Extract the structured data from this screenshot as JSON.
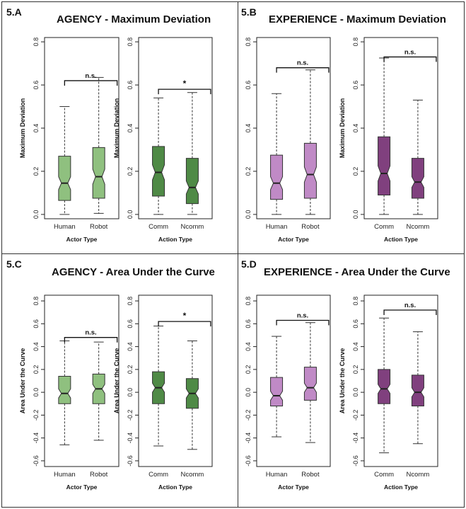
{
  "colors": {
    "agency_human": "#8fc07f",
    "agency_robot": "#8fc07f",
    "agency_action": "#4f8a46",
    "experience_human": "#c08ac6",
    "experience_robot": "#c08ac6",
    "experience_action": "#80407e"
  },
  "chart_data": [
    {
      "panel": "5.A",
      "title": "AGENCY - Maximum Deviation",
      "subplots": [
        {
          "type": "boxplot",
          "xlabel": "Actor Type",
          "ylabel": "Maximum Deviation",
          "ylim": [
            -0.02,
            0.82
          ],
          "yticks": [
            "0.0",
            "0.2",
            "0.4",
            "0.6",
            "0.8"
          ],
          "yticks_values": [
            0,
            0.2,
            0.4,
            0.6,
            0.8
          ],
          "categories": [
            "Human",
            "Robot"
          ],
          "color": "agency_human",
          "boxes": [
            {
              "min": 0.0,
              "q1": 0.065,
              "median": 0.145,
              "q3": 0.27,
              "max": 0.5,
              "notch": [
                0.115,
                0.175
              ]
            },
            {
              "min": 0.005,
              "q1": 0.075,
              "median": 0.175,
              "q3": 0.31,
              "max": 0.635,
              "notch": [
                0.14,
                0.21
              ]
            }
          ],
          "annotation": "n.s.",
          "bracket_y": 0.62
        },
        {
          "type": "boxplot",
          "xlabel": "Action Type",
          "ylabel": "Maximum Deviation",
          "ylim": [
            -0.02,
            0.82
          ],
          "yticks": [
            "0.0",
            "0.2",
            "0.4",
            "0.6",
            "0.8"
          ],
          "yticks_values": [
            0,
            0.2,
            0.4,
            0.6,
            0.8
          ],
          "categories": [
            "Comm",
            "Ncomm"
          ],
          "color": "agency_action",
          "boxes": [
            {
              "min": 0.0,
              "q1": 0.085,
              "median": 0.195,
              "q3": 0.315,
              "max": 0.54,
              "notch": [
                0.16,
                0.23
              ]
            },
            {
              "min": 0.0,
              "q1": 0.05,
              "median": 0.125,
              "q3": 0.26,
              "max": 0.565,
              "notch": [
                0.095,
                0.155
              ]
            }
          ],
          "annotation": "*",
          "bracket_y": 0.58
        }
      ]
    },
    {
      "panel": "5.B",
      "title": "EXPERIENCE - Maximum Deviation",
      "subplots": [
        {
          "type": "boxplot",
          "xlabel": "Actor Type",
          "ylabel": "Maximum Deviation",
          "ylim": [
            -0.02,
            0.82
          ],
          "yticks": [
            "0.0",
            "0.2",
            "0.4",
            "0.6",
            "0.8"
          ],
          "yticks_values": [
            0,
            0.2,
            0.4,
            0.6,
            0.8
          ],
          "categories": [
            "Human",
            "Robot"
          ],
          "color": "experience_human",
          "boxes": [
            {
              "min": 0.0,
              "q1": 0.07,
              "median": 0.145,
              "q3": 0.275,
              "max": 0.56,
              "notch": [
                0.115,
                0.175
              ]
            },
            {
              "min": 0.0,
              "q1": 0.075,
              "median": 0.185,
              "q3": 0.33,
              "max": 0.67,
              "notch": [
                0.15,
                0.22
              ]
            }
          ],
          "annotation": "n.s.",
          "bracket_y": 0.68
        },
        {
          "type": "boxplot",
          "xlabel": "Action Type",
          "ylabel": "Maximum Deviation",
          "ylim": [
            -0.02,
            0.82
          ],
          "yticks": [
            "0.0",
            "0.2",
            "0.4",
            "0.6",
            "0.8"
          ],
          "yticks_values": [
            0,
            0.2,
            0.4,
            0.6,
            0.8
          ],
          "categories": [
            "Comm",
            "Ncomm"
          ],
          "color": "experience_action",
          "boxes": [
            {
              "min": 0.0,
              "q1": 0.09,
              "median": 0.19,
              "q3": 0.36,
              "max": 0.725,
              "notch": [
                0.155,
                0.225
              ]
            },
            {
              "min": 0.0,
              "q1": 0.075,
              "median": 0.15,
              "q3": 0.26,
              "max": 0.53,
              "notch": [
                0.125,
                0.175
              ]
            }
          ],
          "annotation": "n.s.",
          "bracket_y": 0.73
        }
      ]
    },
    {
      "panel": "5.C",
      "title": "AGENCY - Area Under the Curve",
      "subplots": [
        {
          "type": "boxplot",
          "xlabel": "Actor Type",
          "ylabel": "Area Under the Curve",
          "ylim": [
            -0.65,
            0.85
          ],
          "yticks": [
            "-0.6",
            "-0.4",
            "-0.2",
            "0.0",
            "0.2",
            "0.4",
            "0.6",
            "0.8"
          ],
          "yticks_values": [
            -0.6,
            -0.4,
            -0.2,
            0,
            0.2,
            0.4,
            0.6,
            0.8
          ],
          "categories": [
            "Human",
            "Robot"
          ],
          "color": "agency_human",
          "boxes": [
            {
              "min": -0.46,
              "q1": -0.1,
              "median": -0.01,
              "q3": 0.14,
              "max": 0.45,
              "notch": [
                -0.05,
                0.03
              ]
            },
            {
              "min": -0.42,
              "q1": -0.1,
              "median": 0.03,
              "q3": 0.16,
              "max": 0.44,
              "notch": [
                -0.01,
                0.07
              ]
            }
          ],
          "annotation": "n.s.",
          "bracket_y": 0.48
        },
        {
          "type": "boxplot",
          "xlabel": "Action Type",
          "ylabel": "Area Under the Curve",
          "ylim": [
            -0.65,
            0.85
          ],
          "yticks": [
            "-0.6",
            "-0.4",
            "-0.2",
            "0.0",
            "0.2",
            "0.4",
            "0.6",
            "0.8"
          ],
          "yticks_values": [
            -0.6,
            -0.4,
            -0.2,
            0,
            0.2,
            0.4,
            0.6,
            0.8
          ],
          "categories": [
            "Comm",
            "Ncomm"
          ],
          "color": "agency_action",
          "boxes": [
            {
              "min": -0.47,
              "q1": -0.1,
              "median": 0.04,
              "q3": 0.18,
              "max": 0.58,
              "notch": [
                0.0,
                0.08
              ]
            },
            {
              "min": -0.5,
              "q1": -0.14,
              "median": -0.01,
              "q3": 0.12,
              "max": 0.45,
              "notch": [
                -0.05,
                0.03
              ]
            }
          ],
          "annotation": "*",
          "bracket_y": 0.62
        }
      ]
    },
    {
      "panel": "5.D",
      "title": "EXPERIENCE - Area Under the Curve",
      "subplots": [
        {
          "type": "boxplot",
          "xlabel": "Actor Type",
          "ylabel": "Area Under the Curve",
          "ylim": [
            -0.65,
            0.85
          ],
          "yticks": [
            "-0.6",
            "-0.4",
            "-0.2",
            "0.0",
            "0.2",
            "0.4",
            "0.6",
            "0.8"
          ],
          "yticks_values": [
            -0.6,
            -0.4,
            -0.2,
            0,
            0.2,
            0.4,
            0.6,
            0.8
          ],
          "categories": [
            "Human",
            "Robot"
          ],
          "color": "experience_human",
          "boxes": [
            {
              "min": -0.39,
              "q1": -0.12,
              "median": -0.03,
              "q3": 0.13,
              "max": 0.49,
              "notch": [
                -0.07,
                0.01
              ]
            },
            {
              "min": -0.44,
              "q1": -0.07,
              "median": 0.04,
              "q3": 0.22,
              "max": 0.61,
              "notch": [
                0.0,
                0.08
              ]
            }
          ],
          "annotation": "n.s.",
          "bracket_y": 0.63
        },
        {
          "type": "boxplot",
          "xlabel": "Action Type",
          "ylabel": "Area Under the Curve",
          "ylim": [
            -0.65,
            0.85
          ],
          "yticks": [
            "-0.6",
            "-0.4",
            "-0.2",
            "0.0",
            "0.2",
            "0.4",
            "0.6",
            "0.8"
          ],
          "yticks_values": [
            -0.6,
            -0.4,
            -0.2,
            0,
            0.2,
            0.4,
            0.6,
            0.8
          ],
          "categories": [
            "Comm",
            "Ncomm"
          ],
          "color": "experience_action",
          "boxes": [
            {
              "min": -0.53,
              "q1": -0.1,
              "median": 0.03,
              "q3": 0.2,
              "max": 0.65,
              "notch": [
                -0.01,
                0.07
              ]
            },
            {
              "min": -0.45,
              "q1": -0.12,
              "median": 0.0,
              "q3": 0.15,
              "max": 0.53,
              "notch": [
                -0.04,
                0.04
              ]
            }
          ],
          "annotation": "n.s.",
          "bracket_y": 0.72
        }
      ]
    }
  ]
}
